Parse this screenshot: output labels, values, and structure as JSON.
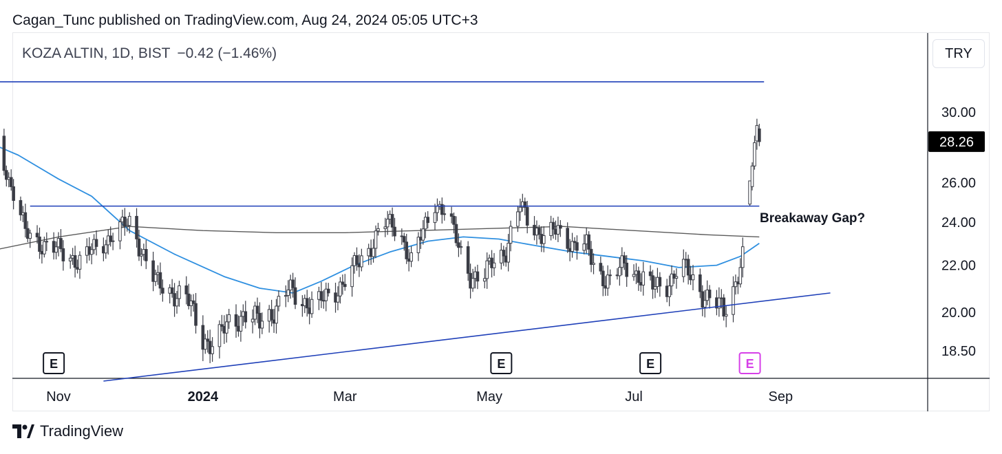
{
  "header": {
    "published_line": "Cagan_Tunc published on TradingView.com, Aug 24, 2024 05:05 UTC+3"
  },
  "legend": {
    "symbol": "KOZA ALTIN, 1D, BIST",
    "change": "−0.42 (−1.46%)"
  },
  "currency_button": "TRY",
  "branding": {
    "name": "TradingView",
    "icon": "tradingview-logo-icon"
  },
  "colors": {
    "trendline": "#1e3fb8",
    "ma_fast": "#2e8fe0",
    "ma_slow": "#5a5a5a",
    "candle": "#3a3c45",
    "earnings_default": "#131722",
    "earnings_upcoming": "#d63fe8",
    "last_price_bg": "#000000"
  },
  "chart_data": {
    "type": "candlestick",
    "y_axis": {
      "ticks": [
        "30.00",
        "26.00",
        "24.00",
        "22.00",
        "20.00",
        "18.50"
      ],
      "scale": "log"
    },
    "x_axis": {
      "ticks": [
        "Nov",
        "2024",
        "Mar",
        "May",
        "Jul",
        "Sep"
      ],
      "bold": [
        "2024"
      ]
    },
    "last_price": "28.26",
    "annotations": [
      {
        "text": "Breakaway Gap?"
      }
    ],
    "earnings_markers": [
      {
        "label": "E",
        "date": "2023-10-30",
        "upcoming": false
      },
      {
        "label": "E",
        "date": "2024-05-06",
        "upcoming": false
      },
      {
        "label": "E",
        "date": "2024-07-08",
        "upcoming": false
      },
      {
        "label": "E",
        "date": "2024-08-19",
        "upcoming": true
      }
    ],
    "trendlines": [
      {
        "name": "upper-horizontal",
        "points": [
          [
            "2023-10-01",
            31.9
          ],
          [
            "2024-08-25",
            31.9
          ]
        ]
      },
      {
        "name": "resistance-horizontal",
        "points": [
          [
            "2023-10-20",
            24.8
          ],
          [
            "2024-08-23",
            24.8
          ]
        ]
      },
      {
        "name": "ascending-support",
        "points": [
          [
            "2023-11-20",
            17.4
          ],
          [
            "2024-09-22",
            20.8
          ]
        ]
      }
    ],
    "ma_fast": [
      [
        "2023-10-01",
        28.3
      ],
      [
        "2023-10-15",
        27.5
      ],
      [
        "2023-11-01",
        26.2
      ],
      [
        "2023-11-15",
        25.3
      ],
      [
        "2023-12-01",
        23.6
      ],
      [
        "2023-12-20",
        22.5
      ],
      [
        "2024-01-10",
        21.5
      ],
      [
        "2024-01-25",
        21.0
      ],
      [
        "2024-02-08",
        20.8
      ],
      [
        "2024-02-20",
        21.3
      ],
      [
        "2024-03-05",
        22.0
      ],
      [
        "2024-03-20",
        22.6
      ],
      [
        "2024-04-05",
        23.1
      ],
      [
        "2024-04-20",
        23.3
      ],
      [
        "2024-05-05",
        23.2
      ],
      [
        "2024-05-20",
        22.9
      ],
      [
        "2024-06-05",
        22.6
      ],
      [
        "2024-06-20",
        22.4
      ],
      [
        "2024-07-05",
        22.2
      ],
      [
        "2024-07-20",
        21.9
      ],
      [
        "2024-08-05",
        22.0
      ],
      [
        "2024-08-15",
        22.4
      ],
      [
        "2024-08-23",
        23.0
      ]
    ],
    "ma_slow": [
      [
        "2023-10-01",
        22.6
      ],
      [
        "2023-11-01",
        23.3
      ],
      [
        "2023-12-01",
        23.8
      ],
      [
        "2024-01-01",
        23.6
      ],
      [
        "2024-02-01",
        23.5
      ],
      [
        "2024-03-01",
        23.5
      ],
      [
        "2024-04-01",
        23.6
      ],
      [
        "2024-05-01",
        23.7
      ],
      [
        "2024-06-01",
        23.8
      ],
      [
        "2024-07-01",
        23.6
      ],
      [
        "2024-08-01",
        23.4
      ],
      [
        "2024-08-23",
        23.3
      ]
    ],
    "price_path": [
      [
        "2023-10-01",
        28.2
      ],
      [
        "2023-10-06",
        28.3
      ],
      [
        "2023-10-12",
        25.8
      ],
      [
        "2023-10-18",
        23.5
      ],
      [
        "2023-10-25",
        23.0
      ],
      [
        "2023-11-02",
        22.6
      ],
      [
        "2023-11-10",
        22.2
      ],
      [
        "2023-11-17",
        22.8
      ],
      [
        "2023-11-25",
        23.5
      ],
      [
        "2023-12-01",
        24.0
      ],
      [
        "2023-12-07",
        22.5
      ],
      [
        "2023-12-12",
        21.2
      ],
      [
        "2023-12-18",
        20.9
      ],
      [
        "2023-12-25",
        20.6
      ],
      [
        "2024-01-01",
        19.0
      ],
      [
        "2024-01-06",
        18.7
      ],
      [
        "2024-01-12",
        19.6
      ],
      [
        "2024-01-18",
        19.9
      ],
      [
        "2024-01-25",
        19.6
      ],
      [
        "2024-02-01",
        20.2
      ],
      [
        "2024-02-06",
        20.9
      ],
      [
        "2024-02-12",
        20.5
      ],
      [
        "2024-02-18",
        20.3
      ],
      [
        "2024-02-25",
        20.8
      ],
      [
        "2024-03-03",
        21.6
      ],
      [
        "2024-03-10",
        22.5
      ],
      [
        "2024-03-17",
        24.0
      ],
      [
        "2024-03-24",
        23.6
      ],
      [
        "2024-03-29",
        22.2
      ],
      [
        "2024-04-03",
        23.5
      ],
      [
        "2024-04-08",
        25.0
      ],
      [
        "2024-04-13",
        24.5
      ],
      [
        "2024-04-18",
        22.8
      ],
      [
        "2024-04-23",
        21.6
      ],
      [
        "2024-04-28",
        21.3
      ],
      [
        "2024-05-03",
        22.3
      ],
      [
        "2024-05-08",
        22.7
      ],
      [
        "2024-05-14",
        24.8
      ],
      [
        "2024-05-18",
        24.0
      ],
      [
        "2024-05-24",
        23.3
      ],
      [
        "2024-05-30",
        23.6
      ],
      [
        "2024-06-05",
        23.0
      ],
      [
        "2024-06-11",
        22.8
      ],
      [
        "2024-06-15",
        21.8
      ],
      [
        "2024-06-21",
        21.3
      ],
      [
        "2024-06-27",
        22.0
      ],
      [
        "2024-07-03",
        21.6
      ],
      [
        "2024-07-09",
        21.0
      ],
      [
        "2024-07-15",
        21.2
      ],
      [
        "2024-07-21",
        22.0
      ],
      [
        "2024-07-25",
        21.5
      ],
      [
        "2024-07-30",
        20.8
      ],
      [
        "2024-08-04",
        20.4
      ],
      [
        "2024-08-08",
        20.0
      ],
      [
        "2024-08-12",
        21.0
      ],
      [
        "2024-08-16",
        22.4
      ]
    ]
  }
}
